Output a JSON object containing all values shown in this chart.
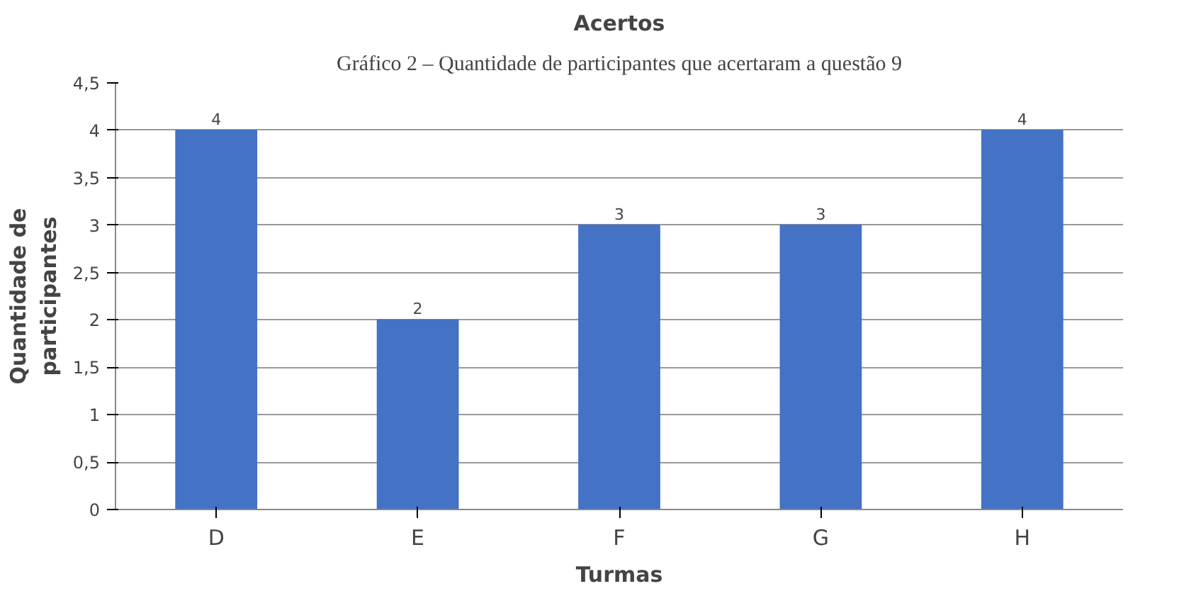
{
  "chart_data": {
    "type": "bar",
    "title": "Acertos",
    "xlabel": "Turmas",
    "ylabel": "Quantidade de\nparticipantes",
    "annotations": [
      "Gráfico 2 – Quantidade de participantes que acertaram a questão 9"
    ],
    "categories": [
      "D",
      "E",
      "F",
      "G",
      "H"
    ],
    "values": [
      4,
      2,
      3,
      3,
      4
    ],
    "color": "#4472c4",
    "data_labels": true,
    "ylim": [
      0,
      4.5
    ],
    "yticks": [
      0,
      {
        "value": 0.5,
        "label": "0,5"
      },
      1,
      {
        "value": 1.5,
        "label": "1,5"
      },
      2,
      {
        "value": 2.5,
        "label": "2,5"
      },
      3,
      {
        "value": 3.5,
        "label": "3,5"
      },
      4,
      {
        "value": 4.5,
        "label": "4,5"
      }
    ],
    "grid": "y"
  }
}
